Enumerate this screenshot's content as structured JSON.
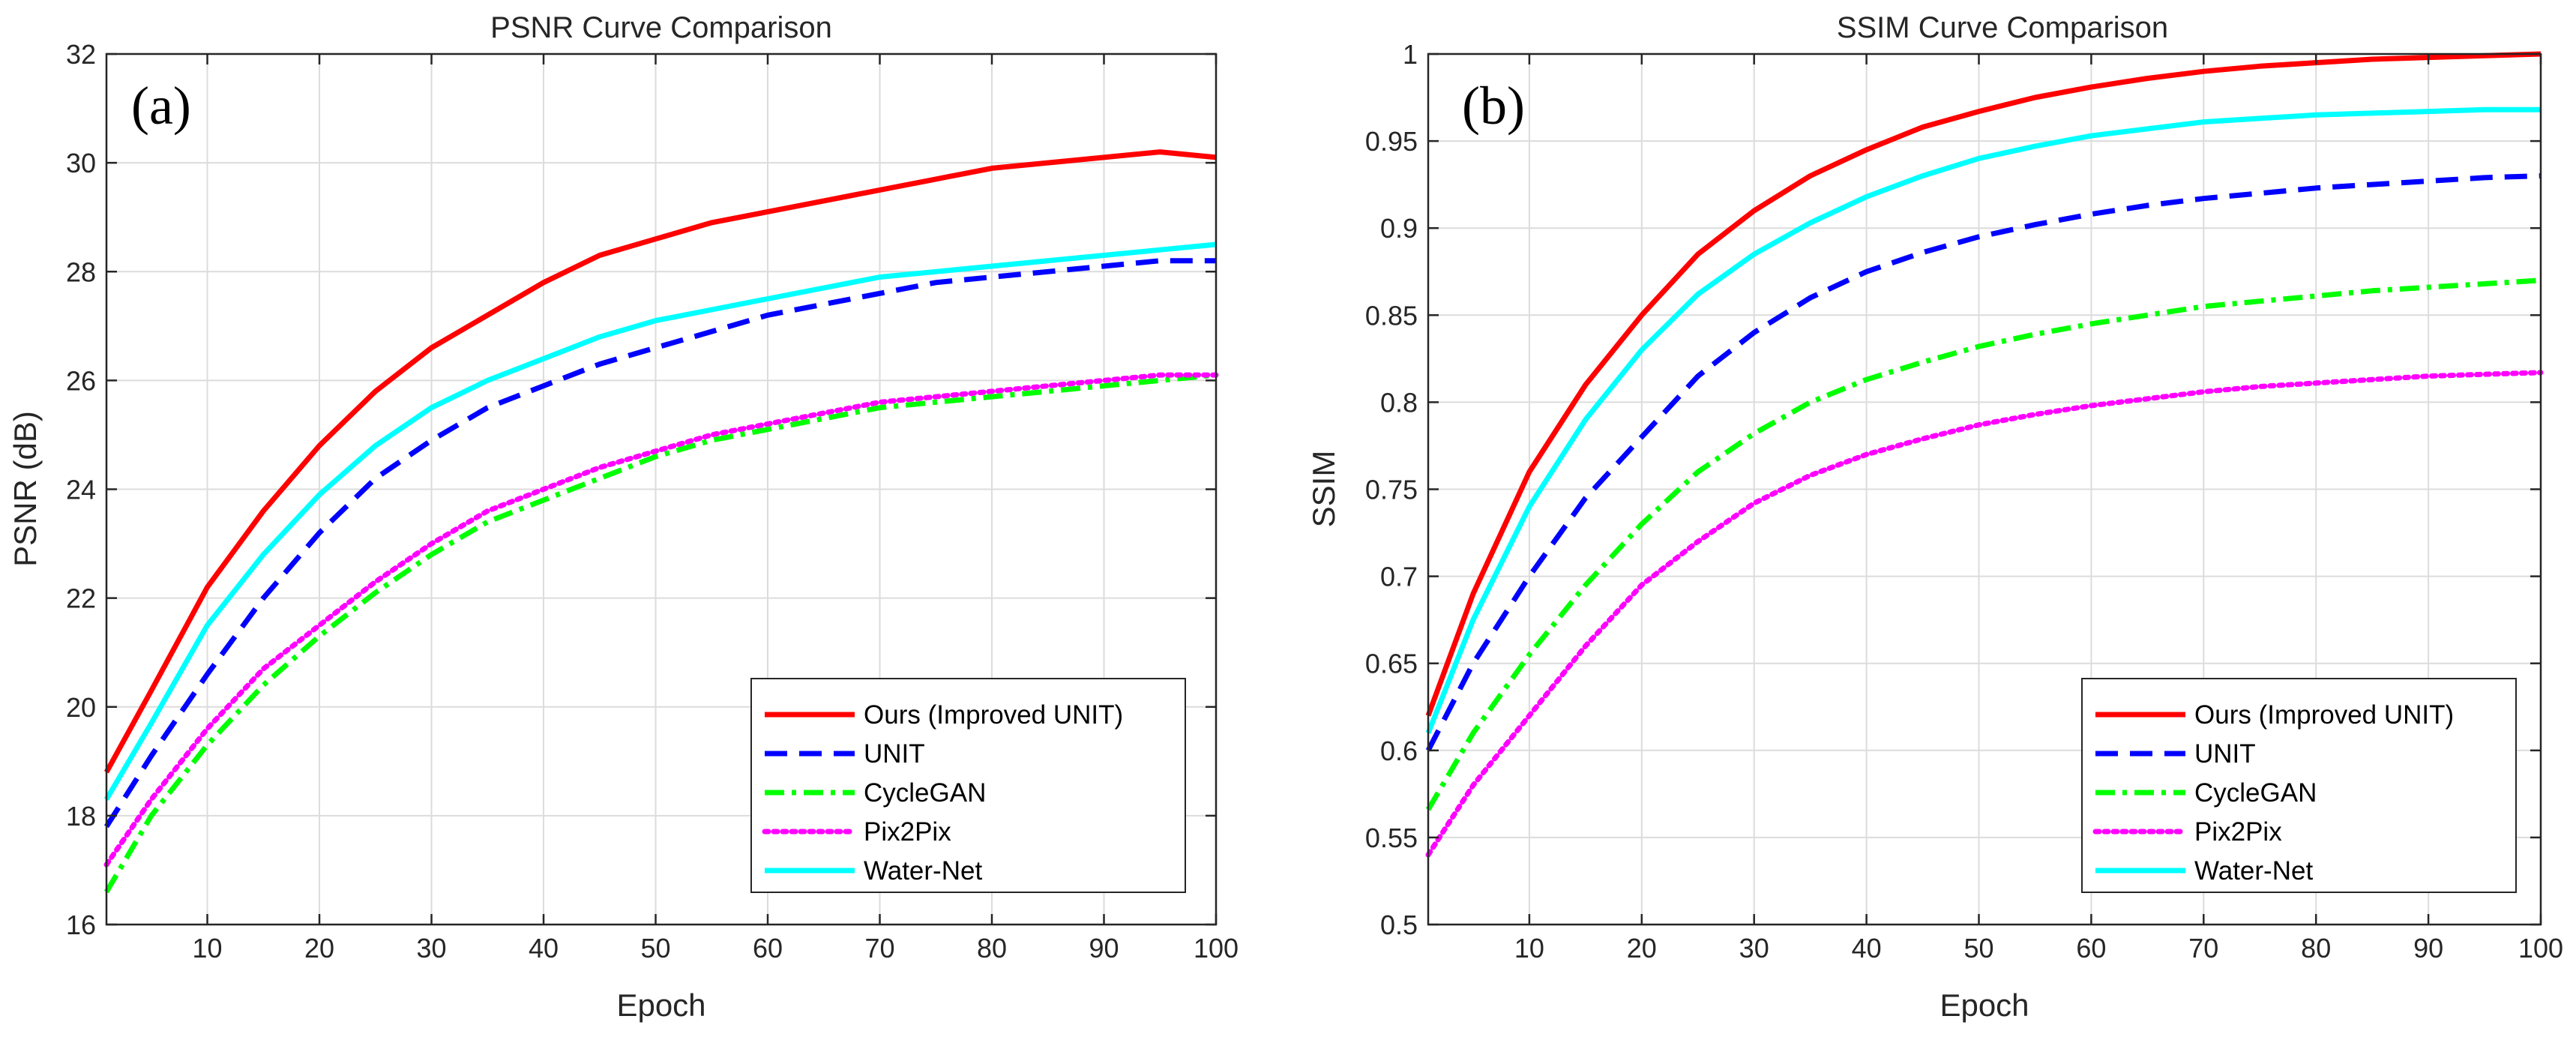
{
  "chart_data": [
    {
      "type": "line",
      "panel_label": "(a)",
      "title": "PSNR Curve Comparison",
      "xlabel": "Epoch",
      "ylabel": "PSNR (dB)",
      "xlim": [
        1,
        100
      ],
      "ylim": [
        16,
        32
      ],
      "xticks": [
        10,
        20,
        30,
        40,
        50,
        60,
        70,
        80,
        90,
        100
      ],
      "yticks": [
        16,
        18,
        20,
        22,
        24,
        26,
        28,
        30,
        32
      ],
      "grid": true,
      "legend_position": "bottom-right",
      "x": [
        1,
        5,
        10,
        15,
        20,
        25,
        30,
        35,
        40,
        45,
        50,
        55,
        60,
        65,
        70,
        75,
        80,
        85,
        90,
        95,
        100
      ],
      "series": [
        {
          "name": "Ours (Improved UNIT)",
          "color": "#ff0000",
          "style": "solid",
          "values": [
            18.8,
            20.3,
            22.2,
            23.6,
            24.8,
            25.8,
            26.6,
            27.2,
            27.8,
            28.3,
            28.6,
            28.9,
            29.1,
            29.3,
            29.5,
            29.7,
            29.9,
            30.0,
            30.1,
            30.2,
            30.1
          ]
        },
        {
          "name": "UNIT",
          "color": "#0000ff",
          "style": "dashed",
          "values": [
            17.8,
            19.1,
            20.6,
            22.0,
            23.2,
            24.2,
            24.9,
            25.5,
            25.9,
            26.3,
            26.6,
            26.9,
            27.2,
            27.4,
            27.6,
            27.8,
            27.9,
            28.0,
            28.1,
            28.2,
            28.2
          ]
        },
        {
          "name": "CycleGAN",
          "color": "#00ff00",
          "style": "dashdot",
          "values": [
            16.6,
            18.0,
            19.3,
            20.4,
            21.3,
            22.1,
            22.8,
            23.4,
            23.8,
            24.2,
            24.6,
            24.9,
            25.1,
            25.3,
            25.5,
            25.6,
            25.7,
            25.8,
            25.9,
            26.0,
            26.1
          ]
        },
        {
          "name": "Pix2Pix",
          "color": "#ff00ff",
          "style": "dotted",
          "values": [
            17.1,
            18.3,
            19.6,
            20.7,
            21.5,
            22.3,
            23.0,
            23.6,
            24.0,
            24.4,
            24.7,
            25.0,
            25.2,
            25.4,
            25.6,
            25.7,
            25.8,
            25.9,
            26.0,
            26.1,
            26.1
          ]
        },
        {
          "name": "Water-Net",
          "color": "#00ffff",
          "style": "solid",
          "values": [
            18.3,
            19.7,
            21.5,
            22.8,
            23.9,
            24.8,
            25.5,
            26.0,
            26.4,
            26.8,
            27.1,
            27.3,
            27.5,
            27.7,
            27.9,
            28.0,
            28.1,
            28.2,
            28.3,
            28.4,
            28.5
          ]
        }
      ]
    },
    {
      "type": "line",
      "panel_label": "(b)",
      "title": "SSIM Curve Comparison",
      "xlabel": "Epoch",
      "ylabel": "SSIM",
      "xlim": [
        1,
        100
      ],
      "ylim": [
        0.5,
        1
      ],
      "xticks": [
        10,
        20,
        30,
        40,
        50,
        60,
        70,
        80,
        90,
        100
      ],
      "yticks": [
        0.5,
        0.55,
        0.6,
        0.65,
        0.7,
        0.75,
        0.8,
        0.85,
        0.9,
        0.95,
        1
      ],
      "ytick_labels": [
        "0.5",
        "0.55",
        "0.6",
        "0.65",
        "0.7",
        "0.75",
        "0.8",
        "0.85",
        "0.9",
        "0.95",
        "1"
      ],
      "grid": true,
      "legend_position": "bottom-right",
      "x": [
        1,
        5,
        10,
        15,
        20,
        25,
        30,
        35,
        40,
        45,
        50,
        55,
        60,
        65,
        70,
        75,
        80,
        85,
        90,
        95,
        100
      ],
      "series": [
        {
          "name": "Ours (Improved UNIT)",
          "color": "#ff0000",
          "style": "solid",
          "values": [
            0.62,
            0.69,
            0.76,
            0.81,
            0.85,
            0.885,
            0.91,
            0.93,
            0.945,
            0.958,
            0.967,
            0.975,
            0.981,
            0.986,
            0.99,
            0.993,
            0.995,
            0.997,
            0.998,
            0.999,
            1.0
          ]
        },
        {
          "name": "UNIT",
          "color": "#0000ff",
          "style": "dashed",
          "values": [
            0.6,
            0.65,
            0.7,
            0.745,
            0.78,
            0.815,
            0.84,
            0.86,
            0.875,
            0.886,
            0.895,
            0.902,
            0.908,
            0.913,
            0.917,
            0.92,
            0.923,
            0.925,
            0.927,
            0.929,
            0.93
          ]
        },
        {
          "name": "CycleGAN",
          "color": "#00ff00",
          "style": "dashdot",
          "values": [
            0.566,
            0.61,
            0.655,
            0.695,
            0.73,
            0.76,
            0.782,
            0.8,
            0.813,
            0.823,
            0.832,
            0.839,
            0.845,
            0.85,
            0.855,
            0.858,
            0.861,
            0.864,
            0.866,
            0.868,
            0.87
          ]
        },
        {
          "name": "Pix2Pix",
          "color": "#ff00ff",
          "style": "dotted",
          "values": [
            0.54,
            0.58,
            0.62,
            0.66,
            0.695,
            0.72,
            0.742,
            0.758,
            0.77,
            0.779,
            0.787,
            0.793,
            0.798,
            0.802,
            0.806,
            0.809,
            0.811,
            0.813,
            0.815,
            0.816,
            0.817
          ]
        },
        {
          "name": "Water-Net",
          "color": "#00ffff",
          "style": "solid",
          "values": [
            0.61,
            0.675,
            0.74,
            0.79,
            0.83,
            0.862,
            0.885,
            0.903,
            0.918,
            0.93,
            0.94,
            0.947,
            0.953,
            0.957,
            0.961,
            0.963,
            0.965,
            0.966,
            0.967,
            0.968,
            0.968
          ]
        }
      ]
    }
  ]
}
